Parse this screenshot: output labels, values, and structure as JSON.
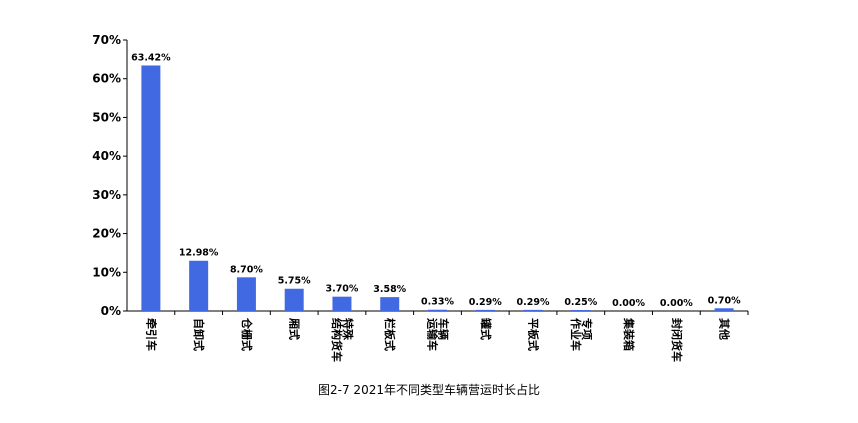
{
  "chart_data": {
    "type": "bar",
    "title": "",
    "xlabel": "",
    "ylabel": "",
    "ylim": [
      0,
      70
    ],
    "yticks": [
      "0%",
      "10%",
      "20%",
      "30%",
      "40%",
      "50%",
      "60%",
      "70%"
    ],
    "grid": false,
    "bar_color": "#4169E1",
    "categories": [
      "牵引车",
      "自卸式",
      "仓栅式",
      "厢式",
      "特殊结构货车",
      "栏板式",
      "车辆运输车",
      "罐式",
      "平板式",
      "专项作业车",
      "集装箱",
      "封闭货车",
      "其他"
    ],
    "category_lines": [
      [
        "牵引车"
      ],
      [
        "自卸式"
      ],
      [
        "仓栅式"
      ],
      [
        "厢式"
      ],
      [
        "特殊",
        "结构货车"
      ],
      [
        "栏板式"
      ],
      [
        "车辆",
        "运输车"
      ],
      [
        "罐式"
      ],
      [
        "平板式"
      ],
      [
        "专项",
        "作业车"
      ],
      [
        "集装箱"
      ],
      [
        "封闭货车"
      ],
      [
        "其他"
      ]
    ],
    "values": [
      63.42,
      12.98,
      8.7,
      5.75,
      3.7,
      3.58,
      0.33,
      0.29,
      0.29,
      0.25,
      0.0,
      0.0,
      0.7
    ],
    "data_labels": [
      "63.42%",
      "12.98%",
      "8.70%",
      "5.75%",
      "3.70%",
      "3.58%",
      "0.33%",
      "0.29%",
      "0.29%",
      "0.25%",
      "0.00%",
      "0.00%",
      "0.70%"
    ]
  },
  "caption": "图2-7 2021年不同类型车辆营运时长占比"
}
